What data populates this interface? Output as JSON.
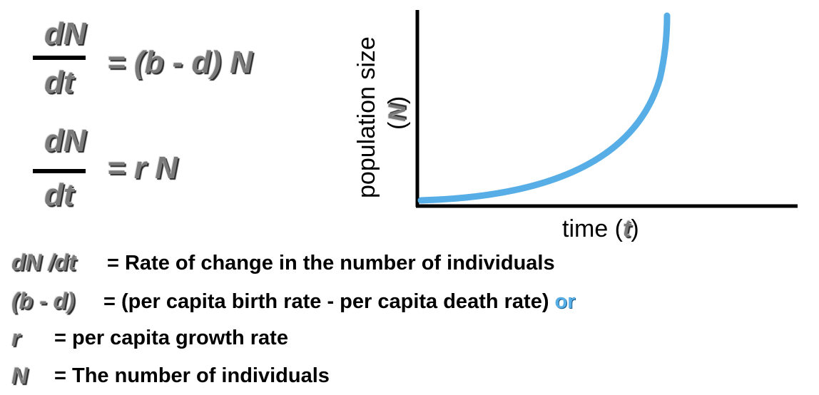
{
  "equation1": {
    "numerator": "dN",
    "denominator": "dt",
    "rhs": "= (b - d) N"
  },
  "equation2": {
    "numerator": "dN",
    "denominator": "dt",
    "rhs": "= r N"
  },
  "graph": {
    "y_label_text": "population size",
    "y_label_symbol": "N",
    "x_label_text": "time",
    "x_label_symbol": "t",
    "curve_color": "#57aee6"
  },
  "definitions": [
    {
      "term": "dN /dt",
      "text": "= Rate of change in the number of individuals",
      "suffix": ""
    },
    {
      "term": "(b - d)",
      "text": "= (per capita birth rate - per capita death rate)",
      "suffix": "or"
    },
    {
      "term": "r",
      "text": "= per capita growth rate",
      "suffix": ""
    },
    {
      "term": "N",
      "text": "= The number of individuals",
      "suffix": ""
    }
  ]
}
